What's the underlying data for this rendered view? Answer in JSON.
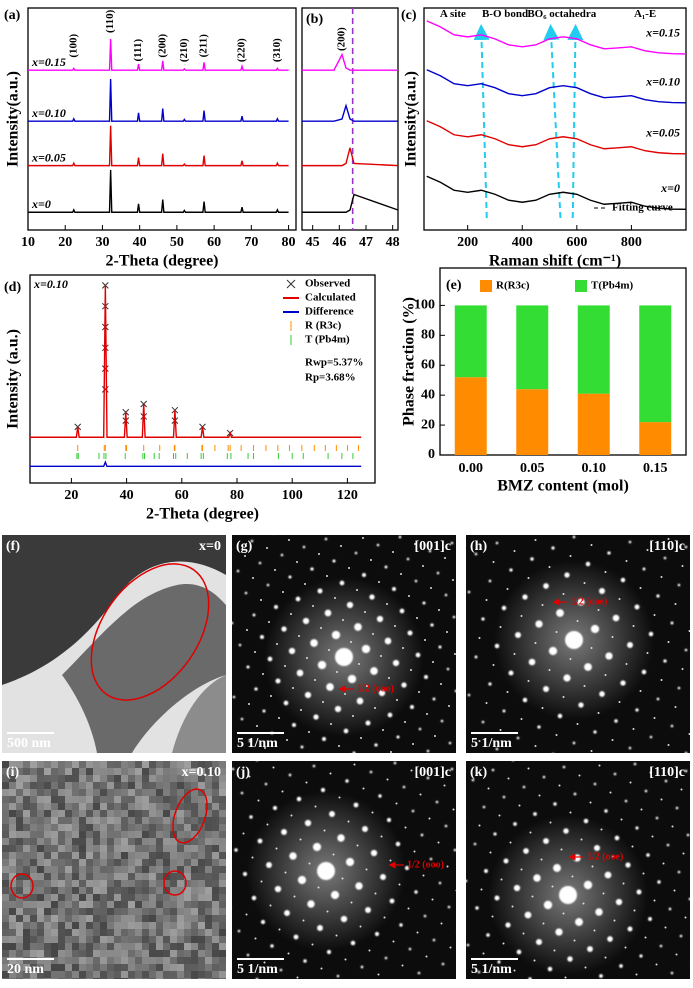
{
  "chart_data": [
    {
      "type": "line",
      "label": "(a)",
      "xlabel": "2-Theta (degree)",
      "ylabel": "Intensity(a.u.)",
      "xlim": [
        10,
        82
      ],
      "xticks": [
        10,
        20,
        30,
        40,
        50,
        60,
        70,
        80
      ],
      "ylim": [
        0,
        100
      ],
      "legend": "inline-left",
      "annotation_style": "vertical",
      "x": [
        10,
        22.0,
        22.3,
        22.6,
        31.9,
        32.2,
        32.5,
        39.4,
        39.7,
        40.0,
        45.9,
        46.2,
        46.5,
        51.7,
        52.0,
        52.3,
        57.0,
        57.3,
        57.6,
        67.2,
        67.5,
        67.8,
        76.7,
        77.0,
        77.3,
        80
      ],
      "series": [
        {
          "name": "x=0.15",
          "color": "#ff00ff",
          "values": [
            72,
            72,
            72.8,
            72,
            72,
            86,
            72,
            72,
            74.8,
            72,
            72,
            76.2,
            72,
            72,
            72.6,
            72,
            72,
            75.5,
            72,
            72,
            73.7,
            72,
            72,
            72.8,
            72,
            72
          ]
        },
        {
          "name": "x=0.10",
          "color": "#0000cc",
          "values": [
            49,
            49,
            50.1,
            49,
            49,
            68,
            49,
            49,
            52.8,
            49,
            49,
            54.7,
            49,
            49,
            49.8,
            49,
            49,
            53.8,
            49,
            49,
            51.3,
            49,
            49,
            50.1,
            49,
            49
          ]
        },
        {
          "name": "x=0.05",
          "color": "#e00000",
          "values": [
            29,
            29,
            30.1,
            29,
            29,
            47,
            29,
            29,
            32.6,
            29,
            29,
            34.4,
            29,
            29,
            29.7,
            29,
            29,
            33.5,
            29,
            29,
            31.2,
            29,
            29,
            30.1,
            29,
            29
          ]
        },
        {
          "name": "x=0",
          "color": "#000000",
          "values": [
            8,
            8,
            9.1,
            8,
            8,
            27,
            8,
            8,
            11.8,
            8,
            8,
            13.7,
            8,
            8,
            8.8,
            8,
            8,
            12.8,
            8,
            8,
            10.3,
            8,
            8,
            9.1,
            8,
            8
          ]
        }
      ],
      "annotations": [
        {
          "text": "(100)",
          "x": 22.3,
          "y": 83
        },
        {
          "text": "(110)",
          "x": 32.2,
          "y": 94
        },
        {
          "text": "(111)",
          "x": 39.7,
          "y": 81
        },
        {
          "text": "(200)",
          "x": 46.2,
          "y": 83
        },
        {
          "text": "(210)",
          "x": 52,
          "y": 81
        },
        {
          "text": "(211)",
          "x": 57.3,
          "y": 83
        },
        {
          "text": "(220)",
          "x": 67.5,
          "y": 81
        },
        {
          "text": "(310)",
          "x": 77,
          "y": 81
        }
      ]
    },
    {
      "type": "line",
      "label": "(b)",
      "xlim": [
        44.6,
        48.2
      ],
      "xticks": [
        45,
        46,
        47,
        48
      ],
      "ylim": [
        0,
        100
      ],
      "annotation_style": "vertical",
      "ref_x": 46.5,
      "ref_color": "#9933cc",
      "x": [
        44.6,
        45.8,
        46.1,
        46.25,
        46.4,
        46.55,
        48.2
      ],
      "series": [
        {
          "color": "#ff00ff",
          "values": [
            72,
            72,
            79,
            73,
            72,
            72,
            72
          ]
        },
        {
          "color": "#0000cc",
          "values": [
            49,
            49,
            50,
            56,
            50,
            49,
            49
          ]
        },
        {
          "color": "#e00000",
          "values": [
            29,
            29,
            29,
            30,
            37,
            30,
            29
          ]
        },
        {
          "color": "#000000",
          "values": [
            8,
            8,
            8,
            8,
            9,
            16,
            9
          ]
        }
      ],
      "annotations": [
        {
          "text": "(200)",
          "x": 46.1,
          "y": 86
        }
      ]
    },
    {
      "type": "line",
      "label": "(c)",
      "xlabel": "Raman shift (cm⁻¹)",
      "ylabel": "Intensity(a.u.)",
      "xlim": [
        40,
        1000
      ],
      "xticks": [
        200,
        400,
        600,
        800
      ],
      "ylim": [
        0,
        100
      ],
      "legend": "inline-right",
      "fit_label": "Fitting curve",
      "x": [
        50,
        100,
        150,
        200,
        250,
        300,
        350,
        400,
        450,
        500,
        550,
        600,
        650,
        700,
        750,
        800,
        850,
        900,
        950,
        1000
      ],
      "series": [
        {
          "name": "x=0.15",
          "color": "#ff00ff",
          "values": [
            94.2,
            91.5,
            87.9,
            87,
            87.9,
            86.1,
            83.4,
            82.5,
            83.4,
            86.1,
            87,
            86.1,
            83.4,
            81.6,
            82,
            82.5,
            80.7,
            79.8,
            79.4,
            79.3
          ]
        },
        {
          "name": "x=0.10",
          "color": "#0000cc",
          "values": [
            72.2,
            69.5,
            65.9,
            65,
            65.9,
            64.1,
            61.4,
            60.5,
            61.4,
            64.1,
            65,
            64.1,
            61.4,
            59.6,
            60,
            60.5,
            58.7,
            57.8,
            57.4,
            57.3
          ]
        },
        {
          "name": "x=0.05",
          "color": "#e00000",
          "values": [
            49.2,
            46.5,
            42.9,
            42,
            42.9,
            41.1,
            38.4,
            37.5,
            38.4,
            41.1,
            42,
            41.1,
            38.4,
            36.6,
            37,
            37.5,
            35.7,
            34.8,
            34.4,
            34.3
          ]
        },
        {
          "name": "x=0",
          "color": "#000000",
          "values": [
            24.2,
            21.5,
            17.9,
            17,
            17.9,
            16.1,
            13.4,
            12.5,
            13.4,
            16.1,
            17,
            16.1,
            13.4,
            11.6,
            12,
            12.5,
            10.7,
            9.8,
            9.4,
            9.3
          ]
        }
      ],
      "annotations": [
        {
          "text": "A site",
          "x": 146,
          "y": 97
        },
        {
          "text": "B-O bond",
          "x": 337,
          "y": 97
        },
        {
          "text": "BO₆ octahedra",
          "x": 545,
          "y": 97
        },
        {
          "text": "A₁-E",
          "x": 850,
          "y": 97
        }
      ],
      "guides": [
        [
          270,
          250
        ],
        [
          540,
          505
        ],
        [
          585,
          595
        ]
      ],
      "guide_color": "#22ccee"
    },
    {
      "type": "line",
      "label": "(d)",
      "xlabel": "2-Theta (degree)",
      "ylabel": "Intensity (a.u.)",
      "xlim": [
        5,
        130
      ],
      "xticks": [
        20,
        40,
        60,
        80,
        100,
        120
      ],
      "ylim": [
        0,
        100
      ],
      "legend": "upper right",
      "sample_label": "x=0.10",
      "notes": [
        "Rwp=5.37%",
        "Rp=3.68%"
      ],
      "series": [
        {
          "name": "Observed",
          "color": "#333333",
          "mode": "markers",
          "x": [
            22.3,
            32.3,
            32.3,
            32.3,
            32.3,
            32.3,
            32.3,
            39.7,
            39.7,
            46.2,
            46.2,
            57.5,
            57.5,
            67.5,
            77.5
          ],
          "values": [
            27,
            95,
            85,
            75,
            65,
            55,
            45,
            34,
            30,
            38,
            32,
            35,
            30,
            27,
            24
          ]
        },
        {
          "name": "Calculated",
          "color": "#e00000",
          "x": [
            5,
            21.8,
            22.3,
            22.8,
            31.7,
            32.3,
            32.9,
            39.2,
            39.7,
            40.2,
            45.7,
            46.2,
            46.7,
            57.0,
            57.5,
            58.0,
            67.0,
            67.5,
            68.0,
            77.0,
            77.5,
            78.0,
            125
          ],
          "values": [
            22,
            22,
            27,
            22,
            22,
            95,
            22,
            22,
            34,
            22,
            22,
            38,
            22,
            22,
            35,
            22,
            22,
            27,
            22,
            22,
            24,
            22,
            22
          ]
        },
        {
          "name": "Difference",
          "color": "#0000cc",
          "x": [
            5,
            31.7,
            32.3,
            32.9,
            125
          ],
          "values": [
            8,
            8,
            10,
            8,
            8
          ]
        },
        {
          "name": "R (R3c)",
          "color": "#ff8c00",
          "mode": "ticks",
          "x": [
            22.3,
            31.9,
            32.3,
            39.7,
            40.0,
            46.2,
            52.0,
            57.3,
            57.5,
            67.3,
            67.5,
            72.0,
            76.8,
            77.5,
            81.5,
            86.0,
            90.5,
            94.8,
            99.0,
            103.5,
            108,
            112,
            116,
            120,
            124
          ]
        },
        {
          "name": "T (Pb4m)",
          "color": "#33cc33",
          "mode": "ticks",
          "x": [
            22.0,
            22.5,
            30,
            31.8,
            32.5,
            39.5,
            45.9,
            46.5,
            50,
            51.8,
            57.0,
            57.8,
            62,
            67.0,
            67.8,
            76.5,
            77.8,
            84,
            86,
            95,
            100,
            104,
            113,
            118,
            122
          ]
        }
      ]
    },
    {
      "type": "bar",
      "stacked": true,
      "label": "(e)",
      "xlabel": "BMZ content (mol)",
      "ylabel": "Phase fraction (%)",
      "legend": "top",
      "categories": [
        "0.00",
        "0.05",
        "0.10",
        "0.15"
      ],
      "ylim": [
        0,
        125
      ],
      "yticks": [
        0,
        20,
        40,
        60,
        80,
        100
      ],
      "series": [
        {
          "name": "R(R3c)",
          "color": "#ff8c00",
          "values": [
            52,
            44,
            41,
            22
          ]
        },
        {
          "name": "T(Pb4m)",
          "color": "#33dd33",
          "values": [
            48,
            56,
            59,
            78
          ]
        }
      ]
    }
  ],
  "images": [
    {
      "label": "(f)",
      "corner": "x=0",
      "scale": "500 nm"
    },
    {
      "label": "(g)",
      "corner": "[001]c",
      "scale": "5 1/nm",
      "note": "1/2 (ooo)"
    },
    {
      "label": "(h)",
      "corner": "[110]c",
      "scale": "5 1/nm",
      "note": "1/2 (ooe)"
    },
    {
      "label": "(i)",
      "corner": "x=0.10",
      "scale": "20 nm"
    },
    {
      "label": "(j)",
      "corner": "[001]c",
      "scale": "5 1/nm",
      "note": "1/2 (ooo)"
    },
    {
      "label": "(k)",
      "corner": "[110]c",
      "scale": "5 1/nm",
      "note": "1/2 (ooe)"
    }
  ]
}
